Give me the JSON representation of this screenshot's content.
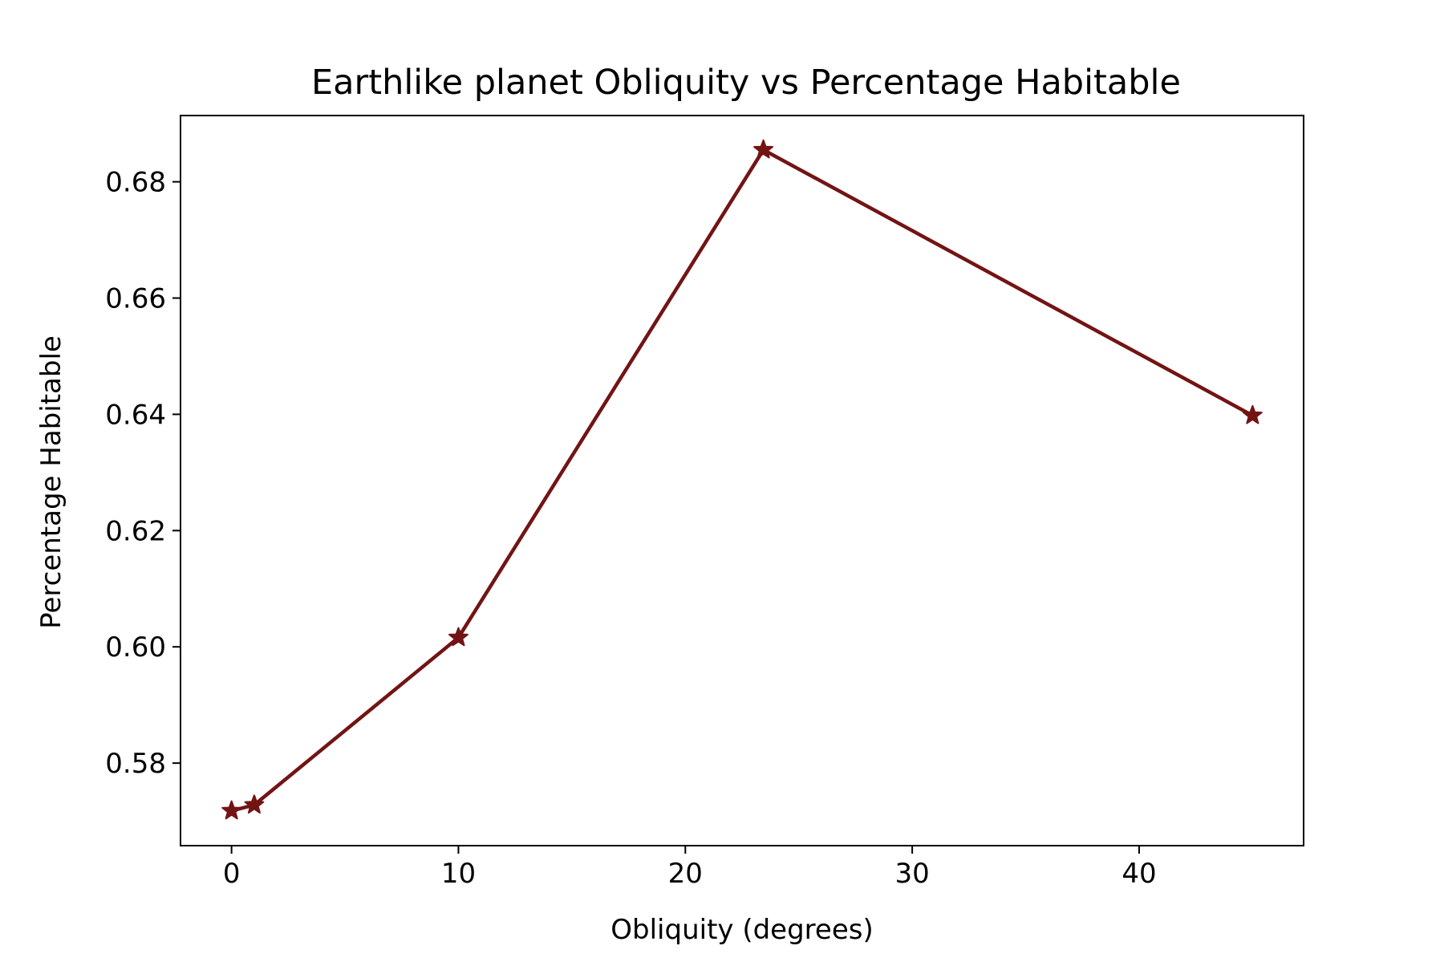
{
  "chart_data": {
    "type": "line",
    "title": "Earthlike planet Obliquity vs Percentage Habitable",
    "xlabel": "Obliquity (degrees)",
    "ylabel": "Percentage Habitable",
    "xlim": [
      -2.25,
      47.25
    ],
    "ylim": [
      0.5658,
      0.6914
    ],
    "x_ticks": [
      0,
      10,
      20,
      30,
      40
    ],
    "x_tick_labels": [
      "0",
      "10",
      "20",
      "30",
      "40"
    ],
    "y_ticks": [
      0.58,
      0.6,
      0.62,
      0.64,
      0.66,
      0.68
    ],
    "y_tick_labels": [
      "0.58",
      "0.60",
      "0.62",
      "0.64",
      "0.66",
      "0.68"
    ],
    "grid": false,
    "series": [
      {
        "name": "Percentage Habitable",
        "marker": "star",
        "color": "#731414",
        "x": [
          0,
          1,
          10,
          23.44,
          45
        ],
        "y": [
          0.5718,
          0.5728,
          0.6016,
          0.6855,
          0.6398
        ]
      }
    ]
  }
}
